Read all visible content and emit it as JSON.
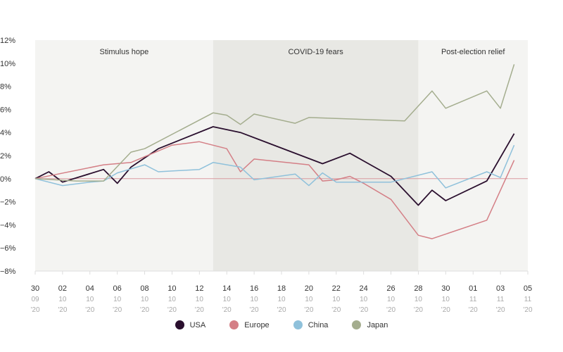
{
  "chart_data": {
    "type": "line",
    "title": "",
    "xlabel": "",
    "ylabel": "",
    "ylim": [
      -8,
      12
    ],
    "yticks": [
      12,
      10,
      8,
      6,
      4,
      2,
      0,
      -2,
      -4,
      -6,
      -8
    ],
    "ytick_labels": [
      "12%",
      "10%",
      "8%",
      "6%",
      "4%",
      "2%",
      "0%",
      "−2%",
      "−4%",
      "−6%",
      "−8%"
    ],
    "xlim": [
      0,
      36
    ],
    "xticks": [
      {
        "day": 0,
        "d": "30",
        "m": "09",
        "y": "'20"
      },
      {
        "day": 2,
        "d": "02",
        "m": "10",
        "y": "'20"
      },
      {
        "day": 4,
        "d": "04",
        "m": "10",
        "y": "'20"
      },
      {
        "day": 6,
        "d": "06",
        "m": "10",
        "y": "'20"
      },
      {
        "day": 8,
        "d": "08",
        "m": "10",
        "y": "'20"
      },
      {
        "day": 10,
        "d": "10",
        "m": "10",
        "y": "'20"
      },
      {
        "day": 12,
        "d": "12",
        "m": "10",
        "y": "'20"
      },
      {
        "day": 14,
        "d": "14",
        "m": "10",
        "y": "'20"
      },
      {
        "day": 16,
        "d": "16",
        "m": "10",
        "y": "'20"
      },
      {
        "day": 18,
        "d": "18",
        "m": "10",
        "y": "'20"
      },
      {
        "day": 20,
        "d": "20",
        "m": "10",
        "y": "'20"
      },
      {
        "day": 22,
        "d": "22",
        "m": "10",
        "y": "'20"
      },
      {
        "day": 24,
        "d": "24",
        "m": "10",
        "y": "'20"
      },
      {
        "day": 26,
        "d": "26",
        "m": "10",
        "y": "'20"
      },
      {
        "day": 28,
        "d": "28",
        "m": "10",
        "y": "'20"
      },
      {
        "day": 30,
        "d": "30",
        "m": "10",
        "y": "'20"
      },
      {
        "day": 32,
        "d": "01",
        "m": "11",
        "y": "'20"
      },
      {
        "day": 34,
        "d": "03",
        "m": "11",
        "y": "'20"
      },
      {
        "day": 36,
        "d": "05",
        "m": "11",
        "y": "'20"
      }
    ],
    "bands": [
      {
        "label": "Stimulus hope",
        "from": 0,
        "to": 13,
        "color": "#f4f4f2"
      },
      {
        "label": "COVID-19 fears",
        "from": 13,
        "to": 28,
        "color": "#e8e8e4"
      },
      {
        "label": "Post-election relief",
        "from": 28,
        "to": 36,
        "color": "#f4f4f2"
      }
    ],
    "series": [
      {
        "name": "USA",
        "color": "#2a0f2e",
        "width": 1.8,
        "points": [
          [
            0,
            0
          ],
          [
            1,
            0.6
          ],
          [
            2,
            -0.3
          ],
          [
            5,
            0.8
          ],
          [
            6,
            -0.4
          ],
          [
            7,
            1.0
          ],
          [
            9,
            2.6
          ],
          [
            13,
            4.5
          ],
          [
            15,
            4.0
          ],
          [
            21,
            1.3
          ],
          [
            23,
            2.2
          ],
          [
            26,
            0.2
          ],
          [
            28,
            -2.3
          ],
          [
            29,
            -1.0
          ],
          [
            30,
            -1.9
          ],
          [
            33,
            -0.2
          ],
          [
            35,
            3.9
          ]
        ]
      },
      {
        "name": "Europe",
        "color": "#d47f86",
        "width": 1.5,
        "points": [
          [
            0,
            0
          ],
          [
            5,
            1.2
          ],
          [
            7,
            1.4
          ],
          [
            10,
            2.9
          ],
          [
            12,
            3.2
          ],
          [
            14,
            2.6
          ],
          [
            15,
            0.6
          ],
          [
            16,
            1.7
          ],
          [
            20,
            1.2
          ],
          [
            21,
            -0.2
          ],
          [
            22,
            -0.1
          ],
          [
            23,
            0.2
          ],
          [
            24,
            -0.4
          ],
          [
            26,
            -1.8
          ],
          [
            28,
            -4.9
          ],
          [
            29,
            -5.2
          ],
          [
            33,
            -3.6
          ],
          [
            35,
            1.6
          ]
        ]
      },
      {
        "name": "China",
        "color": "#8fc1db",
        "width": 1.5,
        "points": [
          [
            0,
            0
          ],
          [
            2,
            -0.6
          ],
          [
            4,
            -0.3
          ],
          [
            5,
            -0.2
          ],
          [
            6,
            0.5
          ],
          [
            8,
            1.2
          ],
          [
            9,
            0.6
          ],
          [
            12,
            0.8
          ],
          [
            13,
            1.4
          ],
          [
            15,
            1.0
          ],
          [
            16,
            -0.1
          ],
          [
            19,
            0.4
          ],
          [
            20,
            -0.6
          ],
          [
            21,
            0.5
          ],
          [
            22,
            -0.3
          ],
          [
            24,
            -0.3
          ],
          [
            26,
            -0.3
          ],
          [
            29,
            0.6
          ],
          [
            30,
            -0.8
          ],
          [
            33,
            0.6
          ],
          [
            34,
            0.1
          ],
          [
            35,
            2.9
          ]
        ]
      },
      {
        "name": "Japan",
        "color": "#a4ad8e",
        "width": 1.5,
        "points": [
          [
            0,
            0
          ],
          [
            3,
            -0.2
          ],
          [
            5,
            -0.2
          ],
          [
            7,
            2.3
          ],
          [
            8,
            2.6
          ],
          [
            13,
            5.7
          ],
          [
            14,
            5.5
          ],
          [
            15,
            4.7
          ],
          [
            16,
            5.6
          ],
          [
            19,
            4.8
          ],
          [
            20,
            5.3
          ],
          [
            27,
            5.0
          ],
          [
            29,
            7.6
          ],
          [
            30,
            6.1
          ],
          [
            33,
            7.6
          ],
          [
            34,
            6.1
          ],
          [
            35,
            9.9
          ]
        ]
      }
    ],
    "legend_placement": "bottom-center",
    "grid": false
  }
}
